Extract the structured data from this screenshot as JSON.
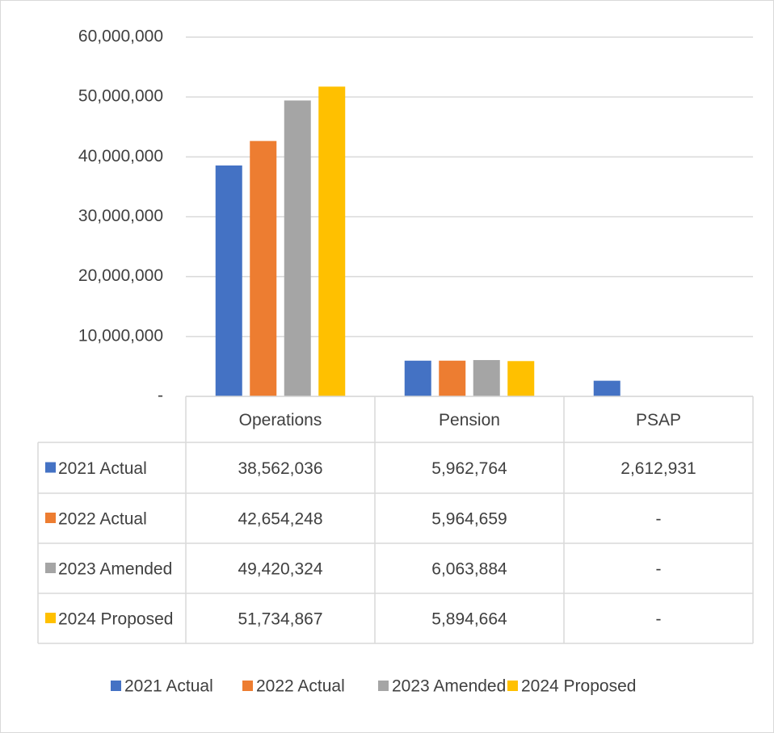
{
  "chart_data": {
    "type": "bar",
    "categories": [
      "Operations",
      "Pension",
      "PSAP"
    ],
    "series": [
      {
        "name": "2021 Actual",
        "color": "#4472c4",
        "values": [
          38562036,
          5962764,
          2612931
        ],
        "value_labels": [
          "38,562,036",
          "5,962,764",
          "2,612,931"
        ]
      },
      {
        "name": "2022 Actual",
        "color": "#ed7d31",
        "values": [
          42654248,
          5964659,
          0
        ],
        "value_labels": [
          "42,654,248",
          "5,964,659",
          "-"
        ]
      },
      {
        "name": "2023 Amended",
        "color": "#a5a5a5",
        "values": [
          49420324,
          6063884,
          0
        ],
        "value_labels": [
          "49,420,324",
          "6,063,884",
          "-"
        ]
      },
      {
        "name": "2024 Proposed",
        "color": "#ffc000",
        "values": [
          51734867,
          5894664,
          0
        ],
        "value_labels": [
          "51,734,867",
          "5,894,664",
          "-"
        ]
      }
    ],
    "ylim": [
      0,
      60000000
    ],
    "yticks": [
      {
        "value": 0,
        "label": "-"
      },
      {
        "value": 10000000,
        "label": "10,000,000"
      },
      {
        "value": 20000000,
        "label": "20,000,000"
      },
      {
        "value": 30000000,
        "label": "30,000,000"
      },
      {
        "value": 40000000,
        "label": "40,000,000"
      },
      {
        "value": 50000000,
        "label": "50,000,000"
      },
      {
        "value": 60000000,
        "label": "60,000,000"
      }
    ],
    "grid": true,
    "data_table": true,
    "legend": "bottom"
  }
}
